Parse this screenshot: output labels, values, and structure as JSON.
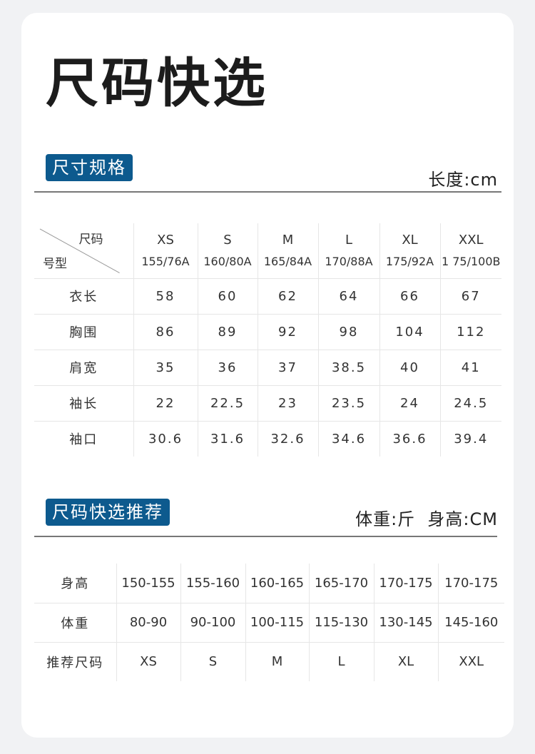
{
  "title": "尺码快选",
  "spec": {
    "badge": "尺寸规格",
    "unit": "长度:cm",
    "corner_top": "尺码",
    "corner_bottom": "号型",
    "sizes": [
      {
        "size": "XS",
        "model": "155/76A"
      },
      {
        "size": "S",
        "model": "160/80A"
      },
      {
        "size": "M",
        "model": "165/84A"
      },
      {
        "size": "L",
        "model": "170/88A"
      },
      {
        "size": "XL",
        "model": "175/92A"
      },
      {
        "size": "XXL",
        "model": "1 75/100B"
      }
    ],
    "rows": [
      {
        "label": "衣长",
        "values": [
          "58",
          "60",
          "62",
          "64",
          "66",
          "67"
        ]
      },
      {
        "label": "胸围",
        "values": [
          "86",
          "89",
          "92",
          "98",
          "104",
          "112"
        ]
      },
      {
        "label": "肩宽",
        "values": [
          "35",
          "36",
          "37",
          "38.5",
          "40",
          "41"
        ]
      },
      {
        "label": "袖长",
        "values": [
          "22",
          "22.5",
          "23",
          "23.5",
          "24",
          "24.5"
        ]
      },
      {
        "label": "袖口",
        "values": [
          "30.6",
          "31.6",
          "32.6",
          "34.6",
          "36.6",
          "39.4"
        ]
      }
    ]
  },
  "recommend": {
    "badge": "尺码快选推荐",
    "unit": "体重:斤  身高:CM",
    "rows": [
      {
        "label": "身高",
        "values": [
          "150-155",
          "155-160",
          "160-165",
          "165-170",
          "170-175",
          "170-175"
        ]
      },
      {
        "label": "体重",
        "values": [
          "80-90",
          "90-100",
          "100-115",
          "115-130",
          "130-145",
          "145-160"
        ]
      },
      {
        "label": "推荐尺码",
        "values": [
          "XS",
          "S",
          "M",
          "L",
          "XL",
          "XXL"
        ]
      }
    ]
  },
  "colors": {
    "badge": "#0d5a8e",
    "background": "#f1f2f4",
    "card": "#ffffff"
  }
}
